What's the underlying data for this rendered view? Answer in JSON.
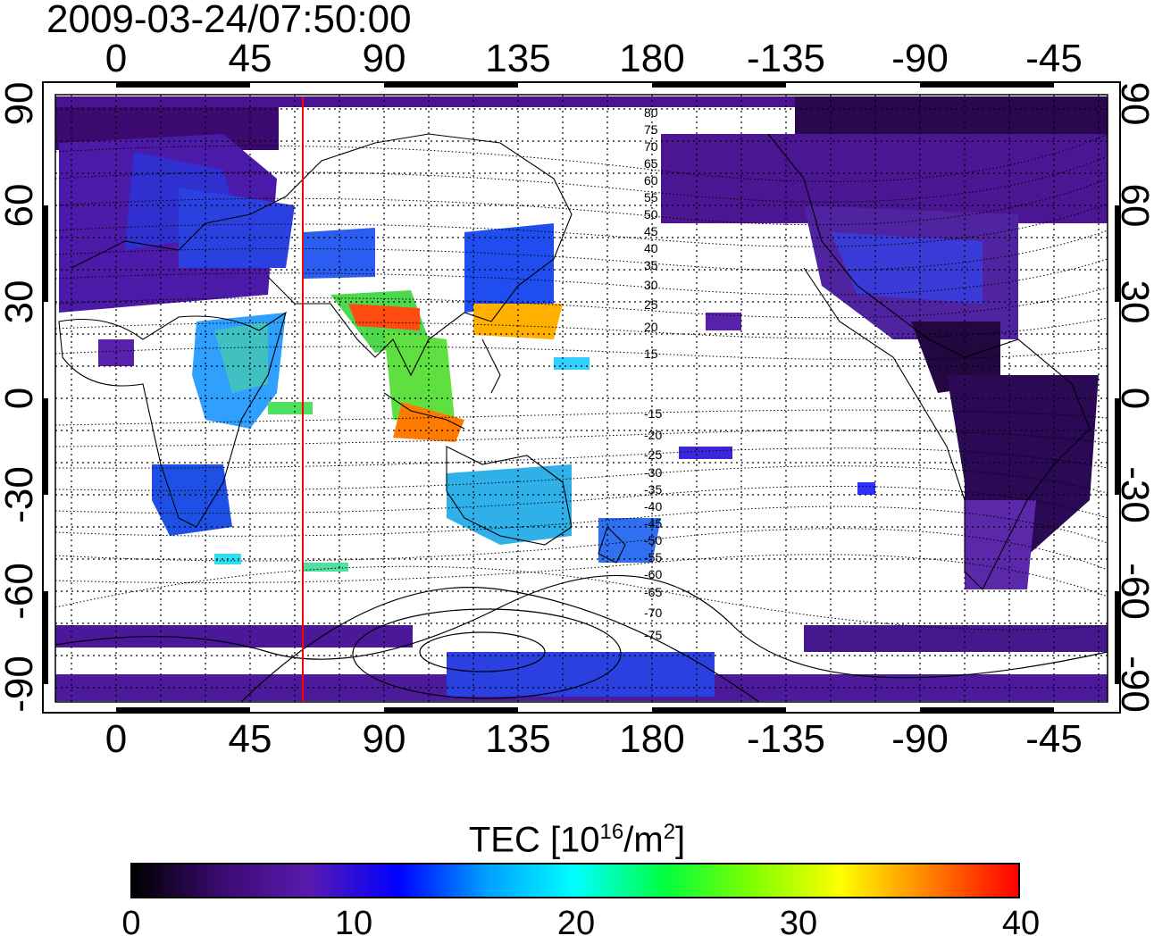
{
  "timestamp": "2009-03-24/07:50:00",
  "map": {
    "lon_ticks": [
      "0",
      "45",
      "90",
      "135",
      "180",
      "-135",
      "-90",
      "-45"
    ],
    "lat_ticks": [
      "90",
      "60",
      "30",
      "0",
      "-30",
      "-60",
      "-90"
    ],
    "contour_labels_north": [
      "80",
      "75",
      "70",
      "65",
      "60",
      "55",
      "50",
      "45",
      "40",
      "35",
      "30",
      "25",
      "20",
      "15"
    ],
    "contour_labels_south": [
      "-15",
      "-20",
      "-25",
      "-30",
      "-35",
      "-40",
      "-45",
      "-50",
      "-55",
      "-60",
      "-65",
      "-70",
      "-75"
    ],
    "marker_line_color": "#ff0000"
  },
  "colorbar": {
    "title_prefix": "TEC  [10",
    "title_exp1": "16",
    "title_mid": "/m",
    "title_exp2": "2",
    "title_suffix": "]",
    "ticks": [
      "0",
      "10",
      "20",
      "30",
      "40"
    ],
    "colors": [
      "#000000",
      "#3a0a70",
      "#5a1ab0",
      "#0000ff",
      "#00a0ff",
      "#00ffff",
      "#00ff40",
      "#80ff00",
      "#ffff00",
      "#ff8000",
      "#ff0000"
    ]
  }
}
